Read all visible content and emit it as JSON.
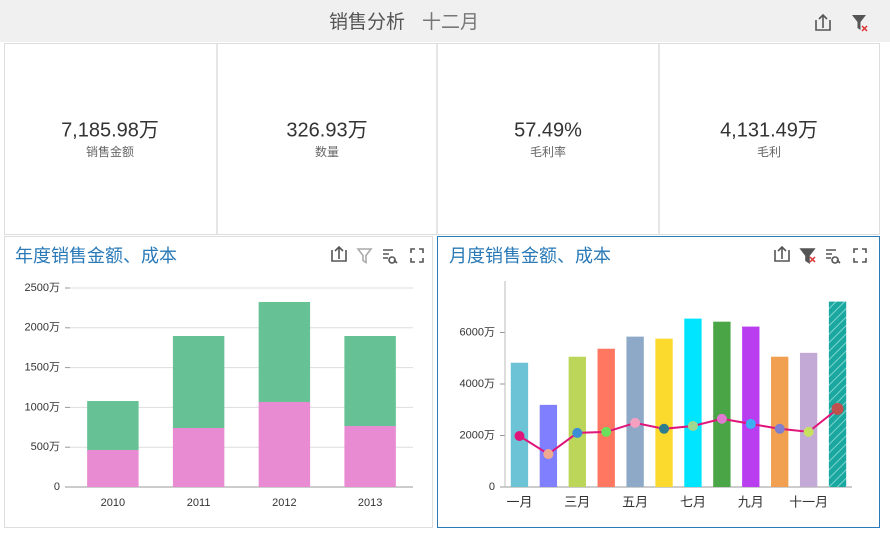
{
  "header": {
    "title": "销售分析",
    "subtitle": "十二月"
  },
  "kpis": [
    {
      "value": "7,185.98万",
      "label": "销售金额"
    },
    {
      "value": "326.93万",
      "label": "数量"
    },
    {
      "value": "57.49%",
      "label": "毛利率"
    },
    {
      "value": "4,131.49万",
      "label": "毛利"
    }
  ],
  "chart_data": [
    {
      "type": "bar",
      "stacked": true,
      "title": "年度销售金额、成本",
      "categories": [
        "2010",
        "2011",
        "2012",
        "2013"
      ],
      "series": [
        {
          "color": "#e88bd2",
          "values": [
            465,
            741,
            1068,
            766
          ]
        },
        {
          "color": "#66c294",
          "values": [
            615,
            1156,
            1256,
            1131
          ]
        }
      ],
      "ylim": [
        0,
        2500
      ],
      "yticks": [
        0,
        {
          "value": 500,
          "label": "500万"
        },
        {
          "value": 1000,
          "label": "1000万"
        },
        {
          "value": 1500,
          "label": "1500万"
        },
        {
          "value": 2000,
          "label": "2000万"
        },
        {
          "value": 2500,
          "label": "2500万"
        }
      ],
      "grid": true
    },
    {
      "type": "combo",
      "title": "月度销售金额、成本",
      "categories": [
        "一月",
        null,
        "三月",
        null,
        "五月",
        null,
        "七月",
        null,
        "九月",
        null,
        "十一月",
        null
      ],
      "series": [
        {
          "kind": "bar",
          "colors": [
            "#6cc3d5",
            "#8080ff",
            "#bcd65a",
            "#ff7761",
            "#8ea9c8",
            "#fcd92d",
            "#00e5ff",
            "#4aa546",
            "#b93ef0",
            "#f0a050",
            "#c3aad6",
            "#1aa79f"
          ],
          "values": [
            4825,
            3190,
            5060,
            5370,
            5840,
            5760,
            6540,
            6420,
            6230,
            5060,
            5210,
            7200
          ]
        },
        {
          "kind": "line",
          "color": "#e0157a",
          "colors": [
            "#e0157a",
            "#f0a890",
            "#3a8fd4",
            "#6be05a",
            "#f5a0c0",
            "#2e7d8f",
            "#a0d890",
            "#e07ad0",
            "#3ab0f0",
            "#8080d0",
            "#c8e060",
            "#c0504d"
          ],
          "values": [
            1980,
            1280,
            2100,
            2140,
            2490,
            2260,
            2370,
            2650,
            2450,
            2260,
            2140,
            3035
          ]
        }
      ],
      "selected_index": 11,
      "ylim": [
        0,
        8000
      ],
      "yticks": [
        0,
        {
          "value": 2000,
          "label": "2000万"
        },
        {
          "value": 4000,
          "label": "4000万"
        },
        {
          "value": 6000,
          "label": "6000万"
        }
      ],
      "grid": false
    }
  ]
}
